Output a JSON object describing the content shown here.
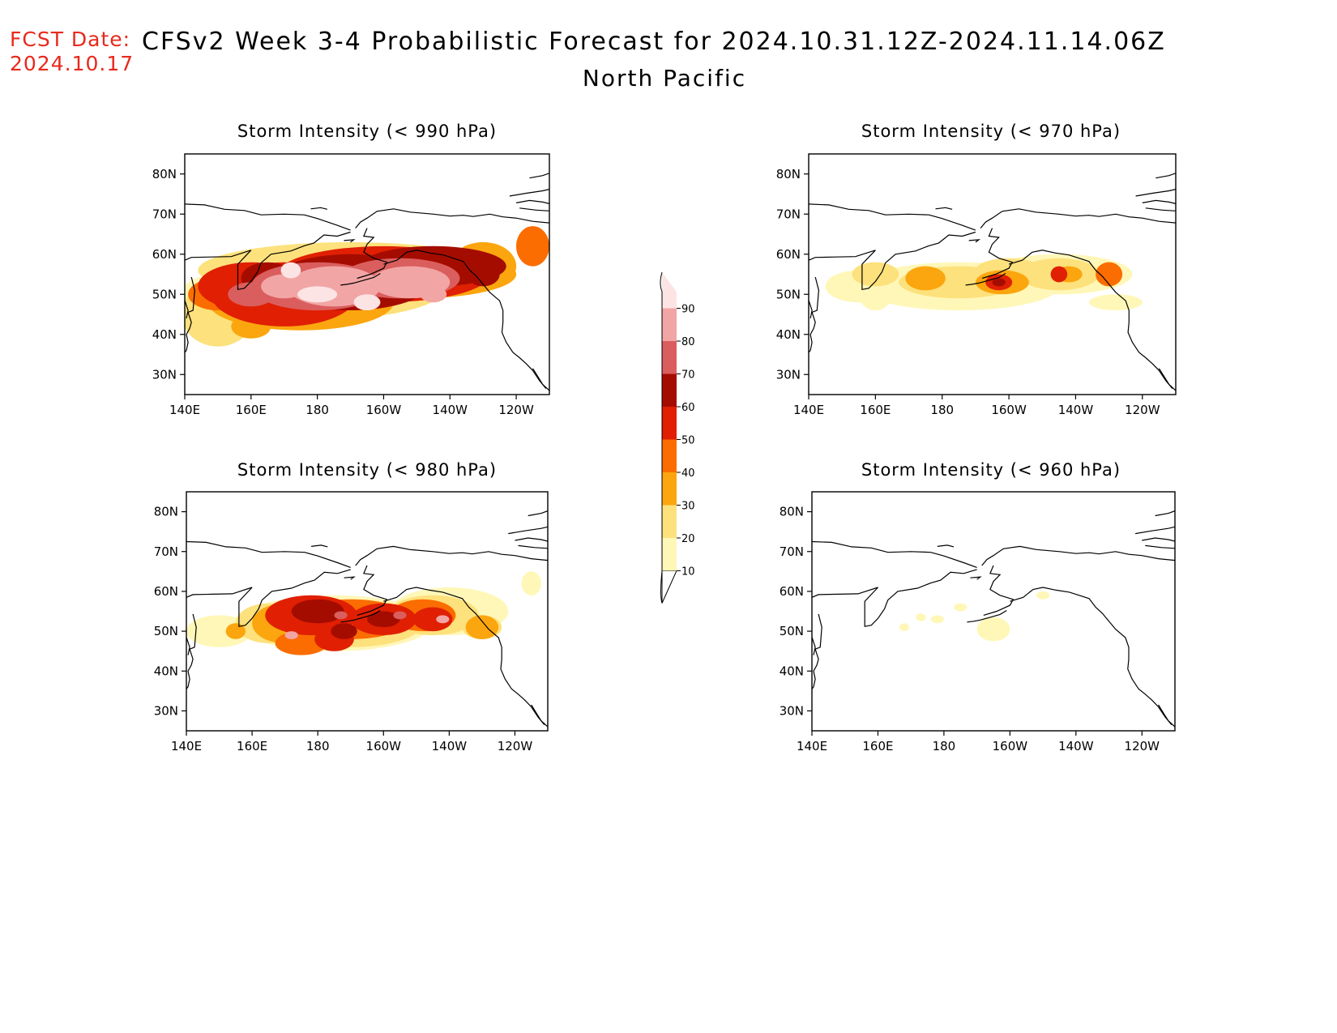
{
  "header": {
    "fcst_label": "FCST Date:",
    "fcst_date": "2024.10.17",
    "title": "CFSv2 Week 3-4 Probabilistic Forecast for 2024.10.31.12Z-2024.11.14.06Z",
    "region": "North Pacific"
  },
  "panels": [
    {
      "id": "p990",
      "title": "Storm Intensity (< 990 hPa)"
    },
    {
      "id": "p970",
      "title": "Storm Intensity (< 970 hPa)"
    },
    {
      "id": "p980",
      "title": "Storm Intensity (< 980 hPa)"
    },
    {
      "id": "p960",
      "title": "Storm Intensity (< 960 hPa)"
    }
  ],
  "axes": {
    "lon_labels": [
      "140E",
      "160E",
      "180",
      "160W",
      "140W",
      "120W"
    ],
    "lat_labels": [
      "80N",
      "70N",
      "60N",
      "50N",
      "40N",
      "30N"
    ]
  },
  "colorbar": {
    "levels": [
      "10",
      "20",
      "30",
      "40",
      "50",
      "60",
      "70",
      "80",
      "90"
    ],
    "colors": [
      "#fff7b8",
      "#fde17c",
      "#fba60e",
      "#fb6d00",
      "#e01f03",
      "#a50c00",
      "#da5e5e",
      "#f2a5a5",
      "#fde4e4"
    ]
  }
}
